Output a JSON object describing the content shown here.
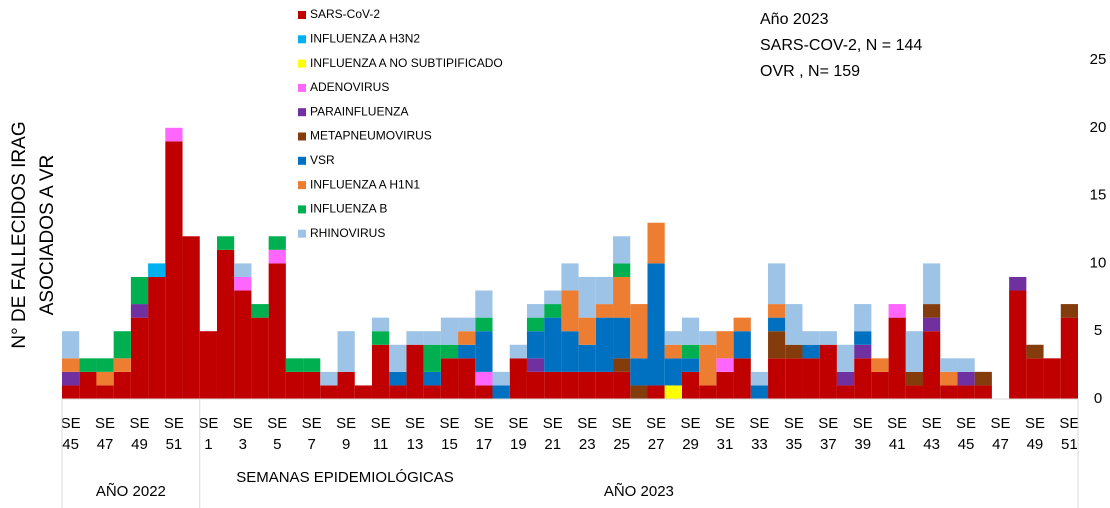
{
  "chart_data": {
    "type": "stacked_bar",
    "y_title": [
      "N° DE FALLECIDOS IRAG",
      "ASOCIADOS A VR"
    ],
    "x_title": "SEMANAS EPIDEMIOLÓGICAS",
    "annotations": [
      "Año 2023",
      "SARS-COV-2, N = 144",
      "OVR , N= 159"
    ],
    "year_labels": [
      "AÑO 2022",
      "AÑO 2023"
    ],
    "category_prefix": "SE",
    "categories": [
      "45",
      null,
      "47",
      null,
      "49",
      null,
      "51",
      null,
      "1",
      null,
      "3",
      null,
      "5",
      null,
      "7",
      null,
      "9",
      null,
      "11",
      null,
      "13",
      null,
      "15",
      null,
      "17",
      null,
      "19",
      null,
      "21",
      null,
      "23",
      null,
      "25",
      null,
      "27",
      null,
      "29",
      null,
      "31",
      null,
      "33",
      null,
      "35",
      null,
      "37",
      null,
      "39",
      null,
      "41",
      null,
      "43",
      null,
      "45",
      null,
      "47",
      null,
      "49",
      null,
      "51"
    ],
    "ylim": [
      0,
      25
    ],
    "yticks": [
      0,
      5,
      10,
      15,
      20,
      25
    ],
    "y_axis_side": "right",
    "grid": false,
    "series": [
      {
        "name": "SARS-CoV-2",
        "color": "#c00000",
        "values": [
          1,
          2,
          1,
          2,
          6,
          9,
          19,
          12,
          5,
          11,
          8,
          6,
          10,
          2,
          2,
          1,
          2,
          1,
          4,
          1,
          4,
          1,
          3,
          3,
          1,
          0,
          3,
          2,
          2,
          2,
          2,
          2,
          2,
          0,
          1,
          0,
          2,
          1,
          2,
          3,
          0,
          3,
          3,
          3,
          4,
          1,
          3,
          2,
          6,
          1,
          5,
          1,
          1,
          1,
          0,
          8,
          3,
          3,
          6
        ]
      },
      {
        "name": "INFLUENZA A H3N2",
        "color": "#00b0f0",
        "values": [
          0,
          0,
          0,
          0,
          0,
          1,
          0,
          0,
          0,
          0,
          0,
          0,
          0,
          0,
          0,
          0,
          0,
          0,
          0,
          0,
          0,
          0,
          0,
          0,
          0,
          0,
          0,
          0,
          0,
          0,
          0,
          0,
          0,
          0,
          0,
          0,
          0,
          0,
          0,
          0,
          0,
          0,
          0,
          0,
          0,
          0,
          0,
          0,
          0,
          0,
          0,
          0,
          0,
          0,
          0,
          0,
          0,
          0,
          0
        ]
      },
      {
        "name": "INFLUENZA A NO SUBTIPIFICADO",
        "color": "#ffff00",
        "values": [
          0,
          0,
          0,
          0,
          0,
          0,
          0,
          0,
          0,
          0,
          0,
          0,
          0,
          0,
          0,
          0,
          0,
          0,
          0,
          0,
          0,
          0,
          0,
          0,
          0,
          0,
          0,
          0,
          0,
          0,
          0,
          0,
          0,
          0,
          0,
          1,
          0,
          0,
          0,
          0,
          0,
          0,
          0,
          0,
          0,
          0,
          0,
          0,
          0,
          0,
          0,
          0,
          0,
          0,
          0,
          0,
          0,
          0,
          0
        ]
      },
      {
        "name": "ADENOVIRUS",
        "color": "#ff66ff",
        "values": [
          0,
          0,
          0,
          0,
          0,
          0,
          1,
          0,
          0,
          0,
          1,
          0,
          1,
          0,
          0,
          0,
          0,
          0,
          0,
          0,
          0,
          0,
          0,
          0,
          1,
          0,
          0,
          0,
          0,
          0,
          0,
          0,
          0,
          0,
          0,
          0,
          0,
          0,
          1,
          0,
          0,
          0,
          0,
          0,
          0,
          0,
          0,
          0,
          1,
          0,
          0,
          0,
          0,
          0,
          0,
          0,
          0,
          0,
          0
        ]
      },
      {
        "name": "PARAINFLUENZA",
        "color": "#7030a0",
        "values": [
          1,
          0,
          0,
          0,
          1,
          0,
          0,
          0,
          0,
          0,
          0,
          0,
          0,
          0,
          0,
          0,
          0,
          0,
          0,
          0,
          0,
          0,
          0,
          0,
          0,
          0,
          0,
          1,
          0,
          0,
          0,
          0,
          0,
          0,
          0,
          0,
          0,
          0,
          0,
          0,
          0,
          0,
          0,
          0,
          0,
          1,
          1,
          0,
          0,
          0,
          1,
          0,
          1,
          0,
          0,
          1,
          0,
          0,
          0
        ]
      },
      {
        "name": "METAPNEUMOVIRUS",
        "color": "#843c0c",
        "values": [
          0,
          0,
          0,
          0,
          0,
          0,
          0,
          0,
          0,
          0,
          0,
          0,
          0,
          0,
          0,
          0,
          0,
          0,
          0,
          0,
          0,
          0,
          0,
          0,
          0,
          0,
          0,
          0,
          0,
          0,
          0,
          0,
          1,
          1,
          0,
          0,
          0,
          0,
          0,
          0,
          0,
          2,
          1,
          0,
          0,
          0,
          0,
          0,
          0,
          1,
          1,
          0,
          0,
          1,
          0,
          0,
          1,
          0,
          1
        ]
      },
      {
        "name": "VSR",
        "color": "#0070c0",
        "values": [
          0,
          0,
          0,
          0,
          0,
          0,
          0,
          0,
          0,
          0,
          0,
          0,
          0,
          0,
          0,
          0,
          0,
          0,
          0,
          1,
          0,
          1,
          0,
          1,
          3,
          1,
          0,
          2,
          4,
          3,
          2,
          4,
          3,
          2,
          9,
          2,
          1,
          0,
          0,
          2,
          1,
          1,
          0,
          1,
          0,
          0,
          1,
          0,
          0,
          0,
          0,
          0,
          0,
          0,
          0,
          0,
          0,
          0,
          0
        ]
      },
      {
        "name": "INFLUENZA A H1N1",
        "color": "#ed7d31",
        "values": [
          1,
          0,
          1,
          1,
          0,
          0,
          0,
          0,
          0,
          0,
          0,
          0,
          0,
          0,
          0,
          0,
          0,
          0,
          0,
          0,
          0,
          0,
          0,
          1,
          0,
          0,
          0,
          0,
          0,
          3,
          2,
          1,
          3,
          4,
          3,
          1,
          0,
          3,
          2,
          1,
          0,
          1,
          0,
          0,
          0,
          0,
          0,
          1,
          0,
          0,
          0,
          1,
          0,
          0,
          0,
          0,
          0,
          0,
          0
        ]
      },
      {
        "name": "INFLUENZA B",
        "color": "#00b050",
        "values": [
          0,
          1,
          1,
          2,
          2,
          0,
          0,
          0,
          0,
          1,
          0,
          1,
          1,
          1,
          1,
          0,
          0,
          0,
          1,
          0,
          0,
          2,
          1,
          0,
          1,
          0,
          0,
          1,
          1,
          0,
          0,
          0,
          1,
          0,
          0,
          0,
          1,
          0,
          0,
          0,
          0,
          0,
          0,
          0,
          0,
          0,
          0,
          0,
          0,
          0,
          0,
          0,
          0,
          0,
          0,
          0,
          0,
          0,
          0
        ]
      },
      {
        "name": "RHINOVIRUS",
        "color": "#9dc3e6",
        "values": [
          2,
          0,
          0,
          0,
          0,
          0,
          0,
          0,
          0,
          0,
          1,
          0,
          0,
          0,
          0,
          1,
          3,
          0,
          1,
          2,
          1,
          1,
          2,
          1,
          2,
          1,
          1,
          1,
          1,
          2,
          3,
          2,
          2,
          0,
          0,
          1,
          2,
          1,
          0,
          0,
          1,
          3,
          3,
          1,
          1,
          2,
          2,
          0,
          0,
          3,
          3,
          1,
          1,
          0,
          0,
          0,
          0,
          0,
          0
        ]
      }
    ]
  }
}
